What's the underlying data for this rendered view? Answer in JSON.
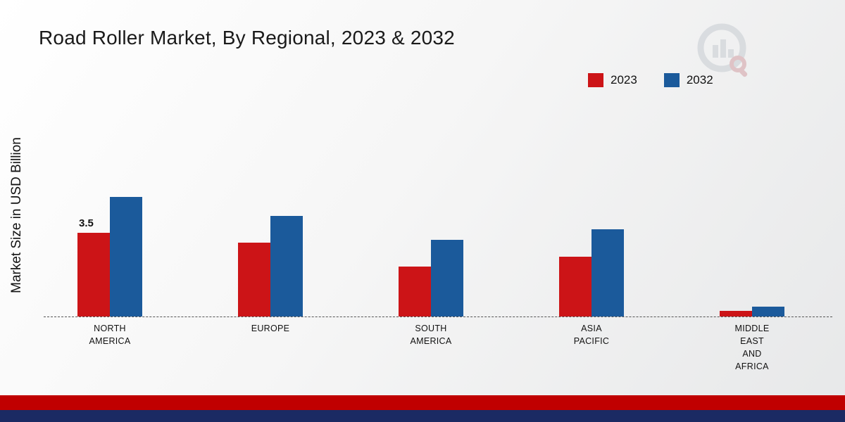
{
  "page": {
    "title": "Road Roller Market, By Regional, 2023 & 2032",
    "y_axis_label": "Market Size in USD Billion"
  },
  "legend": [
    {
      "label": "2023",
      "color": "#cc1417"
    },
    {
      "label": "2032",
      "color": "#1b5a9b"
    }
  ],
  "chart_data": {
    "type": "bar",
    "title": "Road Roller Market, By Regional, 2023 & 2032",
    "xlabel": "",
    "ylabel": "Market Size in USD Billion",
    "ylim": [
      0,
      5.5
    ],
    "grid": false,
    "legend_position": "top-right",
    "baseline_style": "dashed",
    "categories": [
      "NORTH AMERICA",
      "EUROPE",
      "SOUTH AMERICA",
      "ASIA PACIFIC",
      "MIDDLE EAST AND AFRICA"
    ],
    "category_lines": [
      [
        "NORTH",
        "AMERICA"
      ],
      [
        "EUROPE"
      ],
      [
        "SOUTH",
        "AMERICA"
      ],
      [
        "ASIA",
        "PACIFIC"
      ],
      [
        "MIDDLE",
        "EAST",
        "AND",
        "AFRICA"
      ]
    ],
    "series": [
      {
        "name": "2023",
        "color": "#cc1417",
        "values": [
          3.5,
          3.1,
          2.1,
          2.5,
          0.25
        ]
      },
      {
        "name": "2032",
        "color": "#1b5a9b",
        "values": [
          5.0,
          4.2,
          3.2,
          3.65,
          0.4
        ]
      }
    ],
    "annotations": [
      {
        "series": "2023",
        "category": "NORTH AMERICA",
        "text": "3.5"
      }
    ]
  },
  "branding": {
    "logo_name": "market-research-logo",
    "footer_accent_color": "#c00000",
    "footer_bar_color": "#1b2a63"
  }
}
